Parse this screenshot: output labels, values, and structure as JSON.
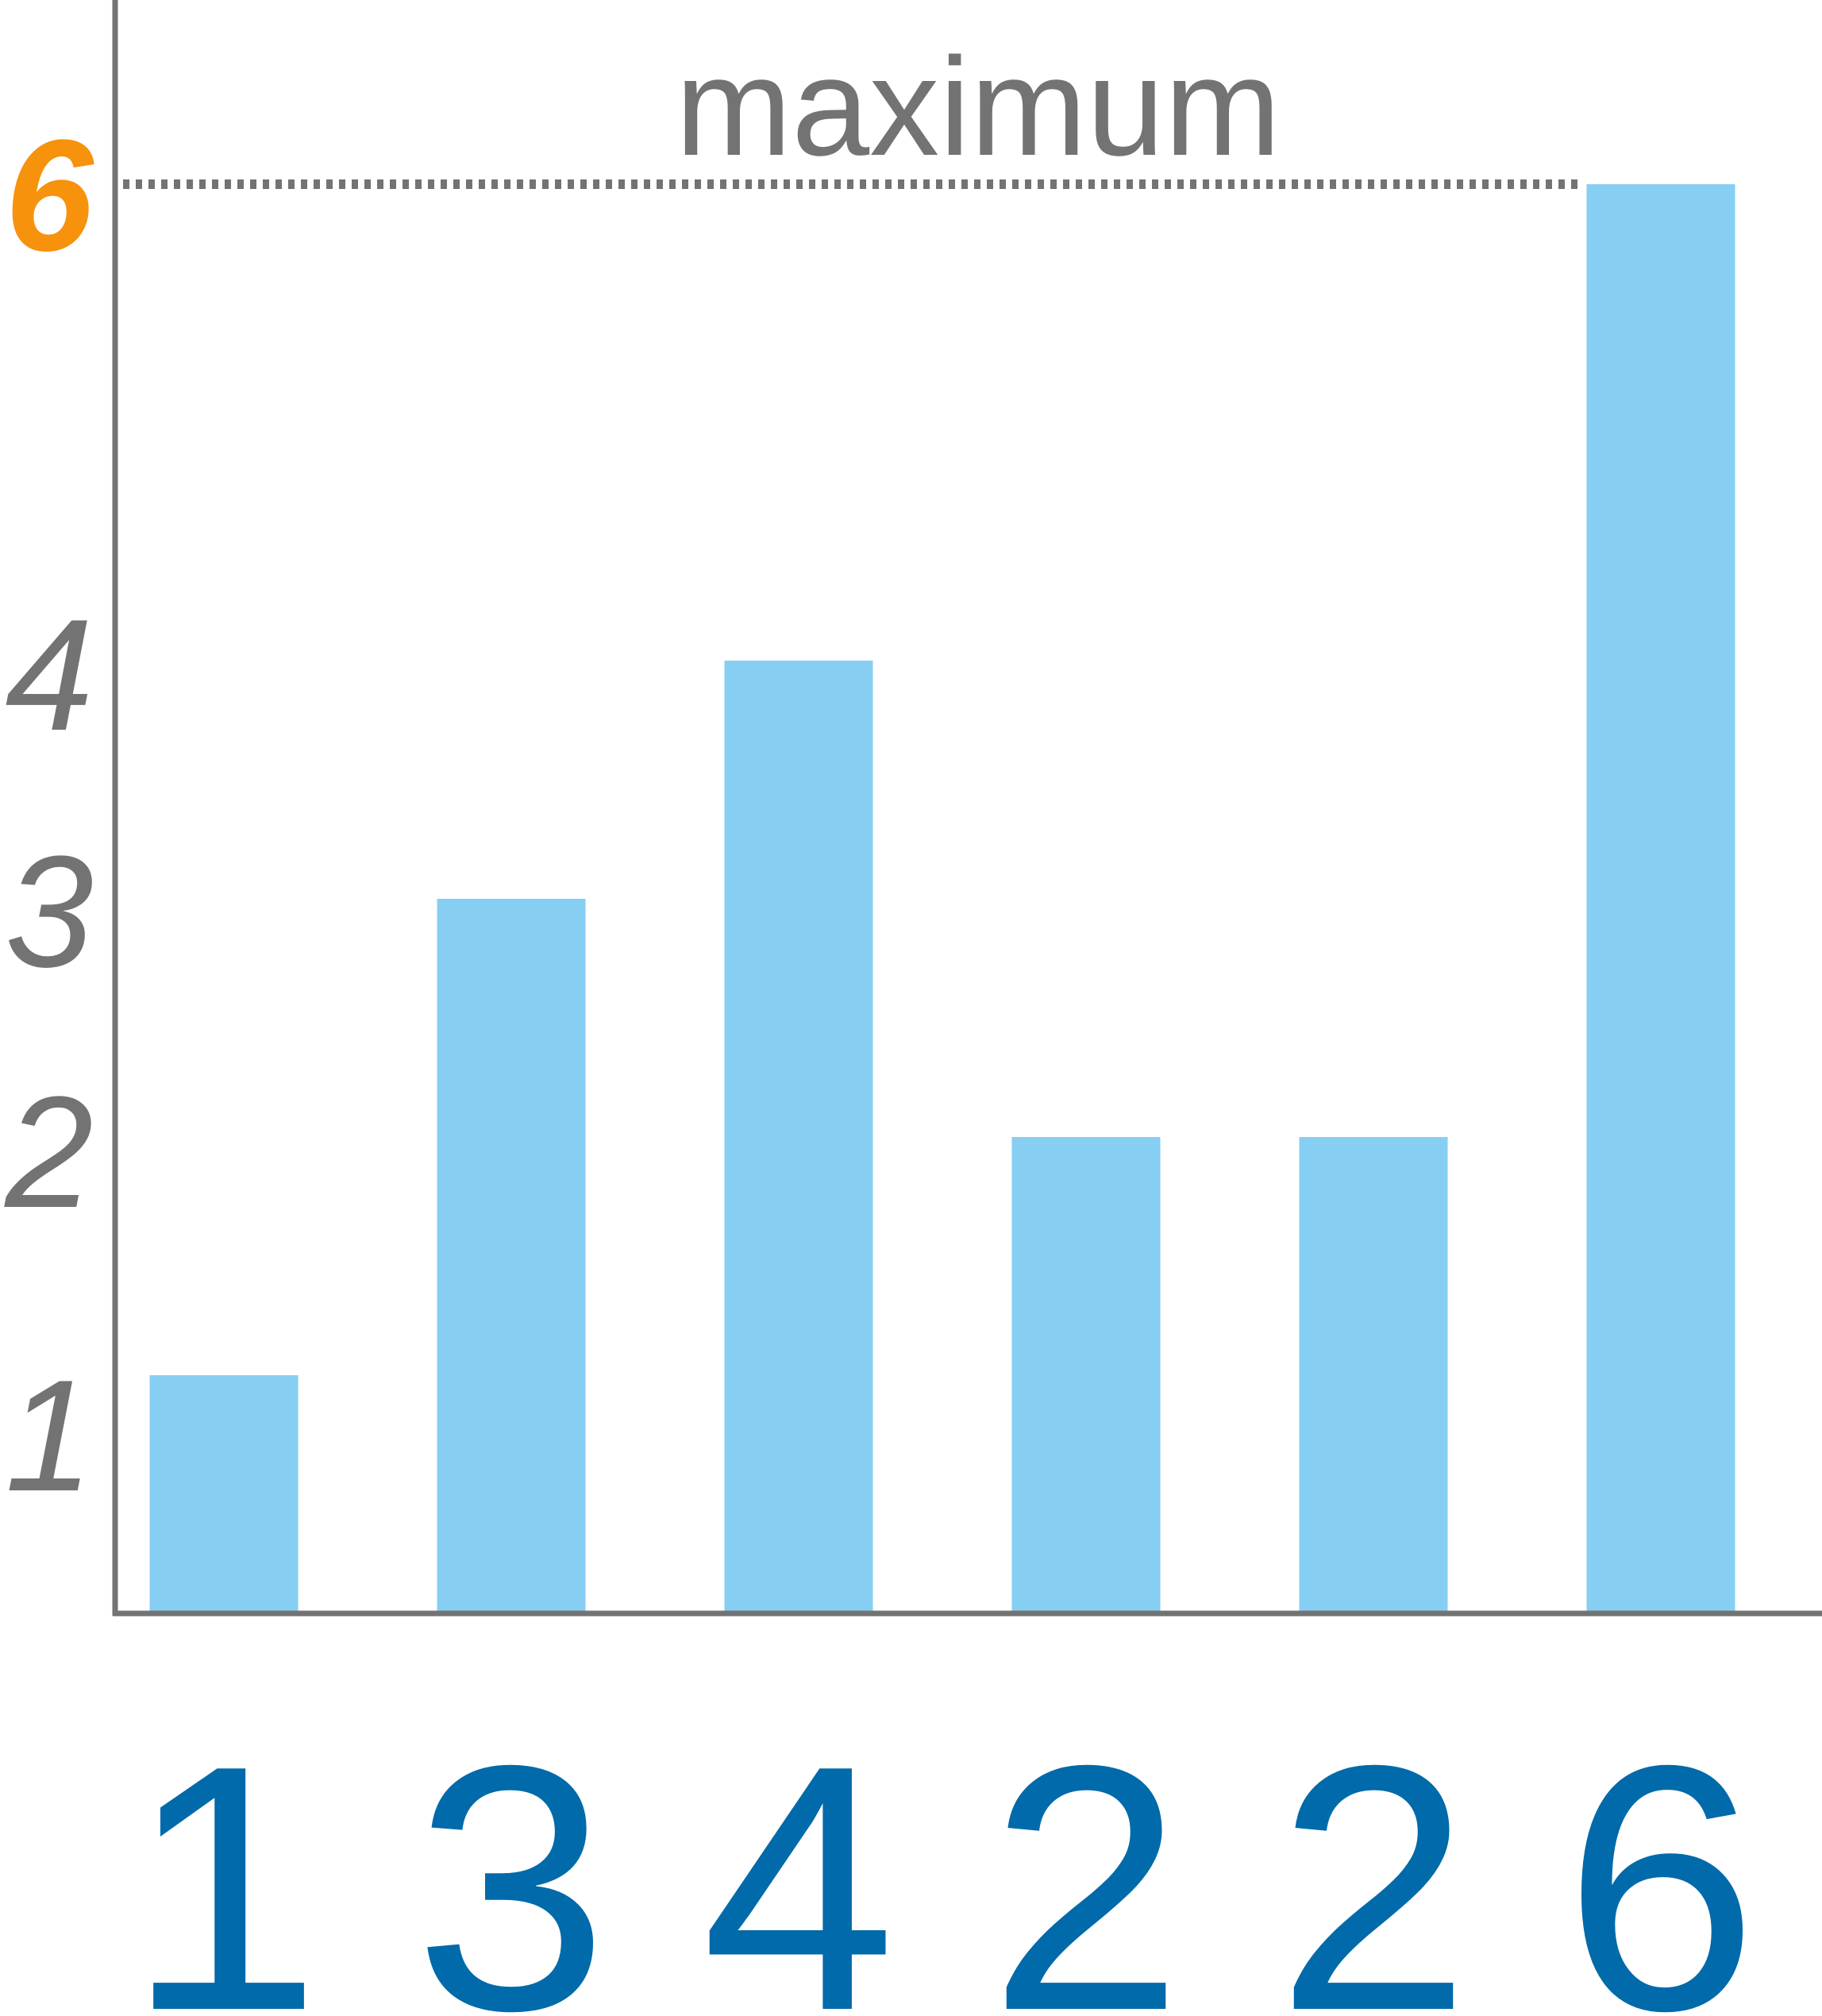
{
  "chart_data": {
    "type": "bar",
    "categories": [
      "1",
      "3",
      "4",
      "2",
      "2",
      "6"
    ],
    "values": [
      1,
      3,
      4,
      2,
      2,
      6
    ],
    "title": "",
    "xlabel": "",
    "ylabel": "",
    "ylim": [
      0,
      6
    ],
    "yticks": [
      "1",
      "2",
      "3",
      "4",
      "6"
    ],
    "grid": false,
    "legend": "none",
    "annotations": [
      {
        "label": "maximum",
        "value": 6,
        "style": "dotted line"
      }
    ],
    "colors": {
      "bar": "#87CEF3",
      "axis": "#737373",
      "tick_label": "#737373",
      "max_tick_label": "#F7920D",
      "category_label": "#006AAA",
      "annotation": "#737373"
    }
  }
}
